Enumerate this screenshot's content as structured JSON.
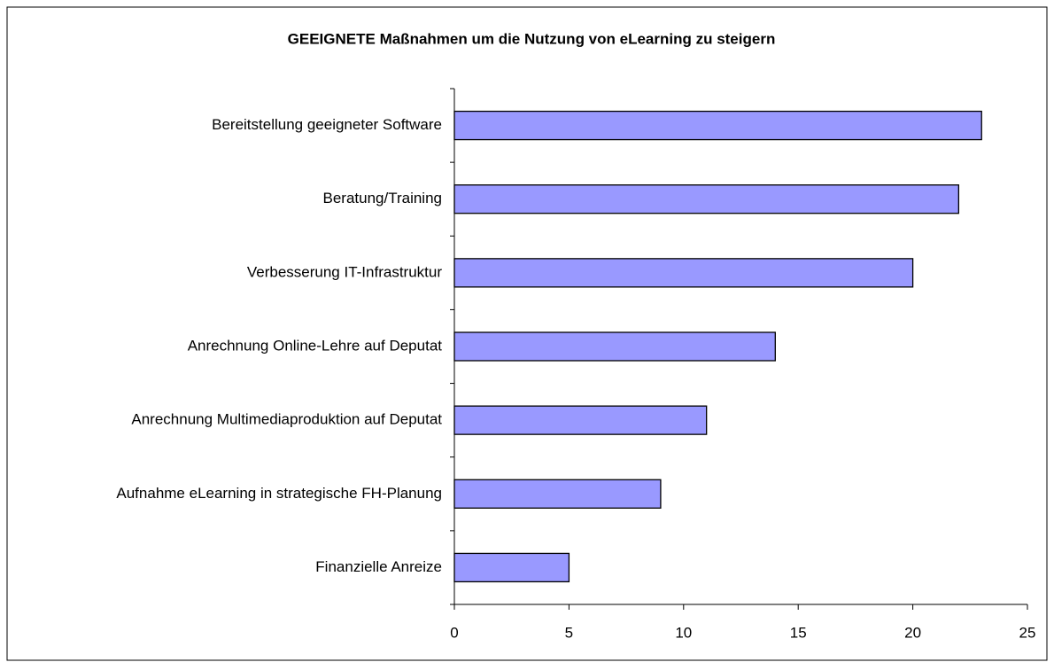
{
  "chart_data": {
    "type": "bar",
    "orientation": "horizontal",
    "title": "GEEIGNETE Maßnahmen um die Nutzung von eLearning zu steigern",
    "categories": [
      "Bereitstellung geeigneter Software",
      "Beratung/Training",
      "Verbesserung IT-Infrastruktur",
      "Anrechnung Online-Lehre auf Deputat",
      "Anrechnung Multimediaproduktion auf Deputat",
      "Aufnahme eLearning in strategische FH-Planung",
      "Finanzielle Anreize"
    ],
    "values": [
      23,
      22,
      20,
      14,
      11,
      9,
      5
    ],
    "color": "#9999ff",
    "xlim": [
      0,
      25
    ],
    "xticks": [
      0,
      5,
      10,
      15,
      20,
      25
    ],
    "grid": false
  }
}
